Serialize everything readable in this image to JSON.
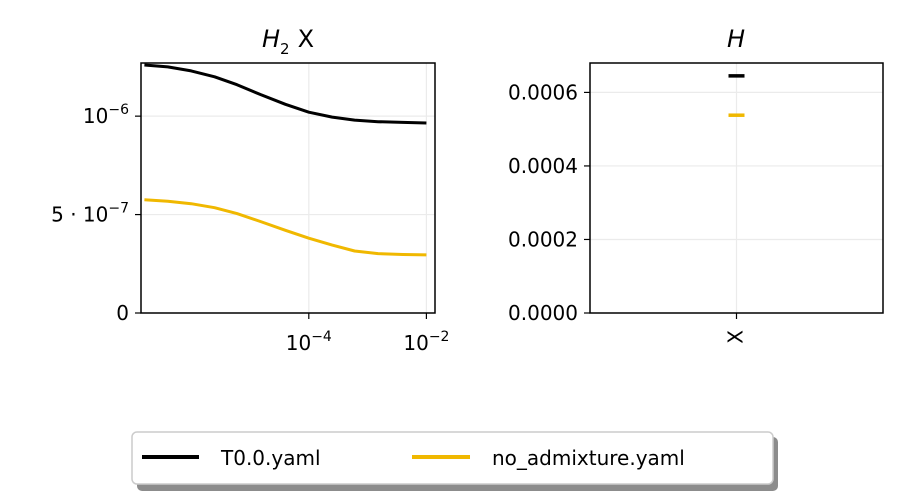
{
  "chart_data": [
    {
      "type": "line",
      "title_main": "H",
      "title_sub": "2",
      "title_suffix": "X",
      "xscale": "log",
      "xlim": [
        1.4e-07,
        0.014
      ],
      "ylim": [
        0,
        1.27e-06
      ],
      "yticks": [
        {
          "value": 0,
          "label": "0"
        },
        {
          "value": 5e-07,
          "base": "5 · 10",
          "exp": "−7"
        },
        {
          "value": 1e-06,
          "base": "10",
          "exp": "−6"
        }
      ],
      "xticks": [
        {
          "value": 0.0001,
          "base": "10",
          "exp": "−4"
        },
        {
          "value": 0.01,
          "base": "10",
          "exp": "−2"
        }
      ],
      "grid": true,
      "series": [
        {
          "name": "T0.0.yaml",
          "color": "#000000",
          "x": [
            1.6e-07,
            4e-07,
            1e-06,
            2.5e-06,
            6e-06,
            1.5e-05,
            4e-05,
            0.0001,
            0.00025,
            0.0006,
            0.0015,
            0.004,
            0.01
          ],
          "y": [
            1.26e-06,
            1.25e-06,
            1.23e-06,
            1.2e-06,
            1.16e-06,
            1.11e-06,
            1.06e-06,
            1.02e-06,
            9.95e-07,
            9.8e-07,
            9.72e-07,
            9.68e-07,
            9.65e-07
          ]
        },
        {
          "name": "no_admixture.yaml",
          "color": "#f0b800",
          "x": [
            1.6e-07,
            4e-07,
            1e-06,
            2.5e-06,
            6e-06,
            1.5e-05,
            4e-05,
            0.0001,
            0.00025,
            0.0006,
            0.0015,
            0.004,
            0.01
          ],
          "y": [
            5.75e-07,
            5.68e-07,
            5.55e-07,
            5.35e-07,
            5.05e-07,
            4.65e-07,
            4.2e-07,
            3.8e-07,
            3.45e-07,
            3.15e-07,
            3.02e-07,
            2.97e-07,
            2.95e-07
          ]
        }
      ]
    },
    {
      "type": "scatter",
      "title": "H",
      "categories": [
        "X"
      ],
      "ylim": [
        0,
        0.00068
      ],
      "yticks": [
        "0.0000",
        "0.0002",
        "0.0004",
        "0.0006"
      ],
      "ytick_values": [
        0,
        0.0002,
        0.0004,
        0.0006
      ],
      "grid": true,
      "series": [
        {
          "name": "T0.0.yaml",
          "color": "#000000",
          "values": [
            0.000645
          ]
        },
        {
          "name": "no_admixture.yaml",
          "color": "#f0b800",
          "values": [
            0.000538
          ]
        }
      ]
    }
  ],
  "legend": {
    "placement": "bottom-center",
    "entries": [
      {
        "label": "T0.0.yaml",
        "color": "#000000"
      },
      {
        "label": "no_admixture.yaml",
        "color": "#f0b800"
      }
    ]
  }
}
